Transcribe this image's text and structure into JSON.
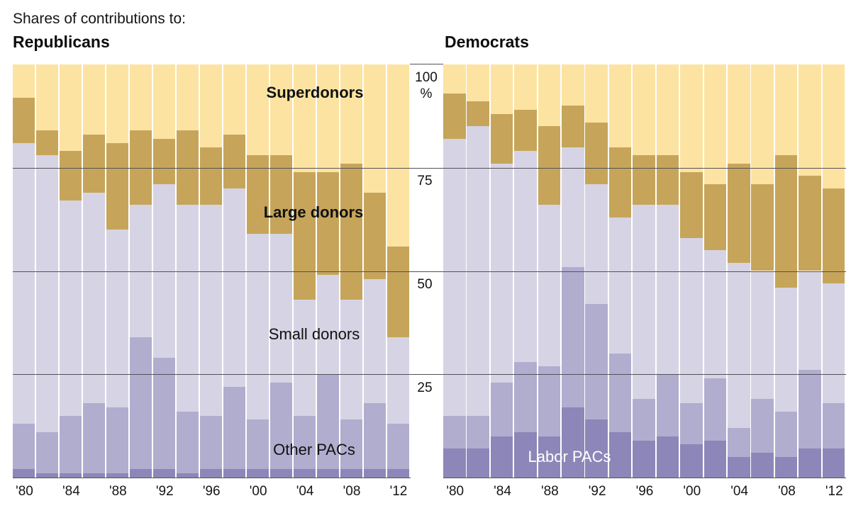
{
  "header": {
    "kicker": "Shares of contributions to:",
    "left_title": "Republicans",
    "right_title": "Democrats"
  },
  "axis": {
    "y_ticks": [
      {
        "value": 100,
        "label": "100",
        "suffix": "%"
      },
      {
        "value": 75,
        "label": "75"
      },
      {
        "value": 50,
        "label": "50"
      },
      {
        "value": 25,
        "label": "25"
      }
    ],
    "x_tick_labels": [
      "'80",
      "'84",
      "'88",
      "'92",
      "'96",
      "'00",
      "'04",
      "'08",
      "'12"
    ]
  },
  "annotations": {
    "superdonors": "Superdonors",
    "large_donors": "Large donors",
    "small_donors": "Small donors",
    "other_pacs": "Other PACs",
    "labor_pacs": "Labor PACs"
  },
  "colors": {
    "superdonors": "#FCE3A1",
    "large_donors": "#C6A55A",
    "small_donors": "#D6D4E4",
    "other_pacs": "#B1ADCF",
    "labor_pacs": "#8C87B8",
    "gridline": "#53525a",
    "text": "#111111",
    "label_on_dark": "#ffffff"
  },
  "chart_data": {
    "type": "bar",
    "subtype": "stacked-100-percent, two panels",
    "unit": "percent of contributions",
    "grid": "horizontal lines at 25, 50, 75",
    "legend_position": "labels inside chart areas",
    "years": [
      1980,
      1982,
      1984,
      1986,
      1988,
      1990,
      1992,
      1994,
      1996,
      1998,
      2000,
      2002,
      2004,
      2006,
      2008,
      2010,
      2012
    ],
    "stack_order_bottom_to_top": [
      "labor_pacs",
      "other_pacs",
      "small_donors",
      "large_donors",
      "superdonors"
    ],
    "ylim": [
      0,
      100
    ],
    "panels": [
      {
        "title": "Republicans",
        "series": [
          {
            "name": "superdonors",
            "values": [
              8,
              16,
              21,
              17,
              19,
              16,
              18,
              16,
              20,
              17,
              22,
              22,
              26,
              26,
              24,
              31,
              44
            ]
          },
          {
            "name": "large_donors",
            "values": [
              11,
              6,
              12,
              14,
              21,
              18,
              11,
              18,
              14,
              13,
              19,
              19,
              31,
              25,
              33,
              21,
              22
            ]
          },
          {
            "name": "small_donors",
            "values": [
              68,
              67,
              52,
              51,
              43,
              32,
              42,
              50,
              51,
              48,
              45,
              36,
              28,
              24,
              29,
              30,
              21
            ]
          },
          {
            "name": "other_pacs",
            "values": [
              11,
              10,
              14,
              17,
              16,
              32,
              27,
              15,
              13,
              20,
              12,
              21,
              13,
              23,
              12,
              16,
              11
            ]
          },
          {
            "name": "labor_pacs",
            "values": [
              2,
              1,
              1,
              1,
              1,
              2,
              2,
              1,
              2,
              2,
              2,
              2,
              2,
              2,
              2,
              2,
              2
            ]
          }
        ]
      },
      {
        "title": "Democrats",
        "series": [
          {
            "name": "superdonors",
            "values": [
              7,
              9,
              12,
              11,
              15,
              10,
              14,
              20,
              22,
              22,
              26,
              29,
              24,
              29,
              22,
              27,
              30
            ]
          },
          {
            "name": "large_donors",
            "values": [
              11,
              6,
              12,
              10,
              19,
              10,
              15,
              17,
              12,
              12,
              16,
              16,
              24,
              21,
              32,
              23,
              23
            ]
          },
          {
            "name": "small_donors",
            "values": [
              67,
              70,
              53,
              51,
              39,
              29,
              29,
              33,
              47,
              41,
              40,
              31,
              40,
              31,
              30,
              24,
              29
            ]
          },
          {
            "name": "other_pacs",
            "values": [
              8,
              8,
              13,
              17,
              17,
              34,
              28,
              19,
              10,
              15,
              10,
              15,
              7,
              13,
              11,
              19,
              11
            ]
          },
          {
            "name": "labor_pacs",
            "values": [
              7,
              7,
              10,
              11,
              10,
              17,
              14,
              11,
              9,
              10,
              8,
              9,
              5,
              6,
              5,
              7,
              7
            ]
          }
        ]
      }
    ]
  }
}
